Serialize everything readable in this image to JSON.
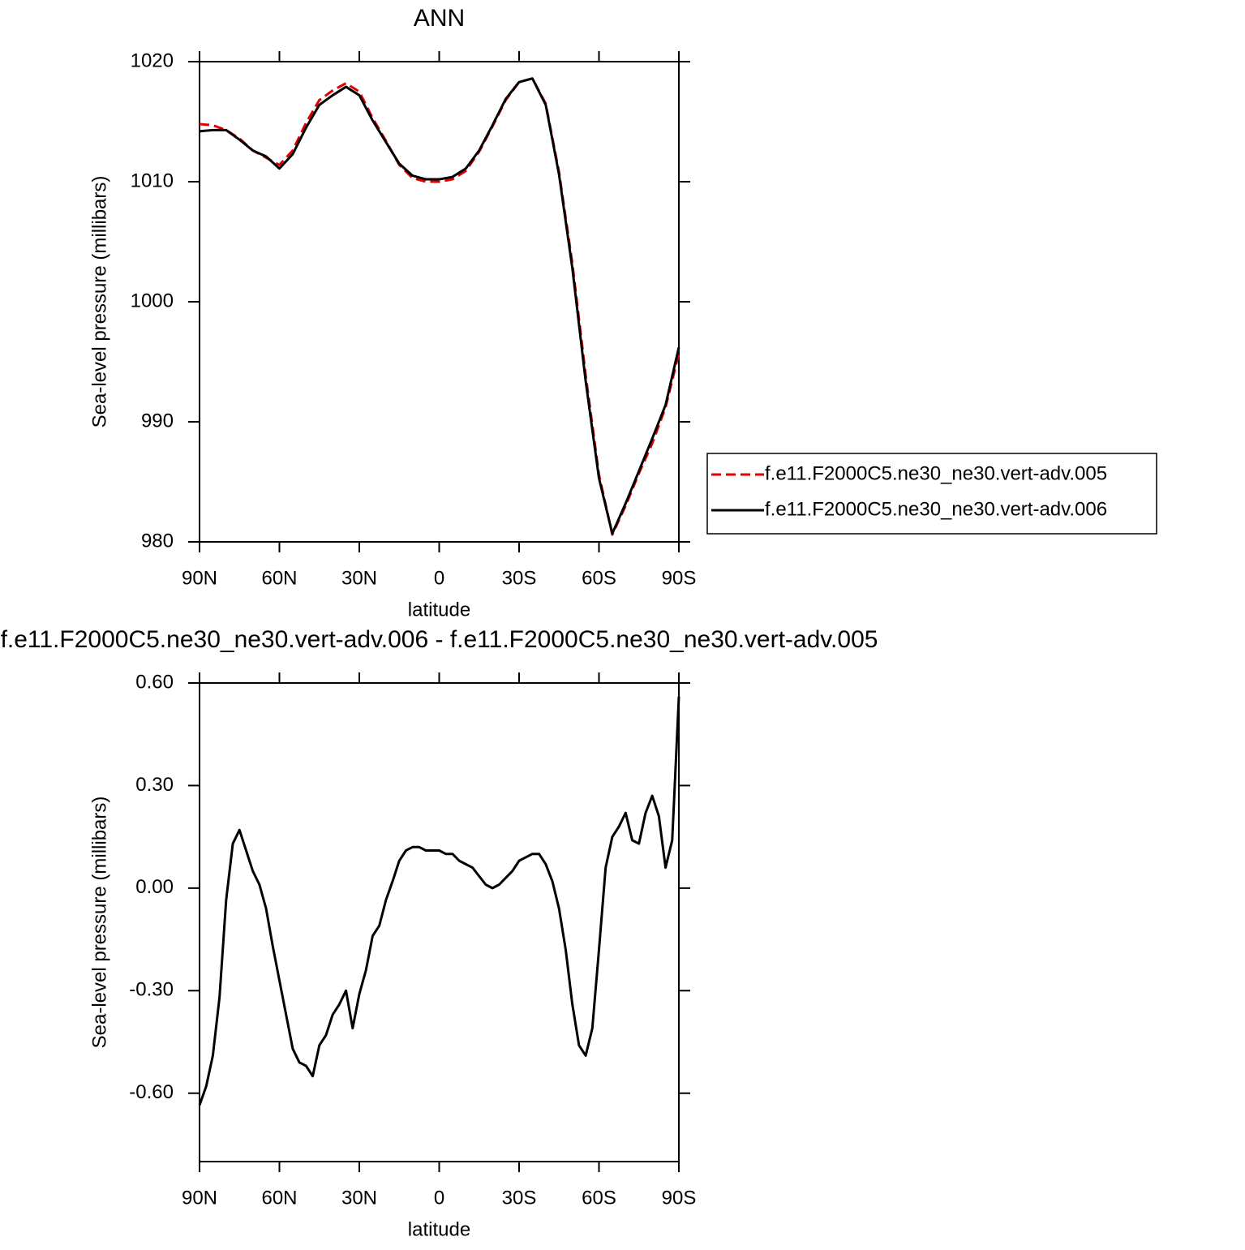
{
  "chart_data": [
    {
      "type": "line",
      "title": "ANN",
      "xlabel": "latitude",
      "ylabel": "Sea-level pressure (millibars)",
      "x": [
        90,
        85,
        80,
        75,
        70,
        65,
        60,
        55,
        50,
        45,
        40,
        35,
        30,
        25,
        20,
        15,
        10,
        5,
        0,
        -5,
        -10,
        -15,
        -20,
        -25,
        -30,
        -35,
        -40,
        -45,
        -50,
        -55,
        -60,
        -65,
        -70,
        -75,
        -80,
        -85,
        -90
      ],
      "series": [
        {
          "name": "f.e11.F2000C5.ne30_ne30.vert-adv.005",
          "color": "#e00000",
          "linestyle": "dashed",
          "values": [
            1014.8,
            1014.7,
            1014.3,
            1013.6,
            1012.6,
            1012.0,
            1011.4,
            1012.6,
            1014.9,
            1016.8,
            1017.6,
            1018.2,
            1017.5,
            1015.3,
            1013.4,
            1011.4,
            1010.3,
            1010.0,
            1010.0,
            1010.2,
            1010.9,
            1012.5,
            1014.6,
            1016.8,
            1018.3,
            1018.6,
            1016.5,
            1010.8,
            1003.2,
            993.9,
            985.6,
            980.6,
            983.0,
            985.7,
            988.2,
            991.2,
            995.7
          ]
        },
        {
          "name": "f.e11.F2000C5.ne30_ne30.vert-adv.006",
          "color": "#000000",
          "linestyle": "solid",
          "values": [
            1014.2,
            1014.3,
            1014.3,
            1013.5,
            1012.6,
            1012.1,
            1011.1,
            1012.3,
            1014.5,
            1016.4,
            1017.2,
            1017.9,
            1017.2,
            1015.1,
            1013.3,
            1011.5,
            1010.5,
            1010.2,
            1010.2,
            1010.4,
            1011.1,
            1012.6,
            1014.7,
            1016.9,
            1018.3,
            1018.6,
            1016.4,
            1010.6,
            1002.8,
            993.4,
            985.3,
            980.7,
            983.2,
            985.9,
            988.6,
            991.4,
            996.2
          ]
        }
      ],
      "xlim": [
        90,
        -90
      ],
      "xticks": [
        {
          "value": 90,
          "label": "90N"
        },
        {
          "value": 60,
          "label": "60N"
        },
        {
          "value": 30,
          "label": "30N"
        },
        0,
        {
          "value": -30,
          "label": "30S"
        },
        {
          "value": -60,
          "label": "60S"
        },
        {
          "value": -90,
          "label": "90S"
        }
      ],
      "ylim": [
        980,
        1020
      ],
      "yticks": [
        980,
        990,
        1000,
        1010,
        1020
      ],
      "legend": "right"
    },
    {
      "type": "line",
      "title": "f.e11.F2000C5.ne30_ne30.vert-adv.006 - f.e11.F2000C5.ne30_ne30.vert-adv.005",
      "xlabel": "latitude",
      "ylabel": "Sea-level pressure (millibars)",
      "x": [
        90,
        87.5,
        85,
        82.5,
        80,
        77.5,
        75,
        72.5,
        70,
        67.5,
        65,
        62.5,
        60,
        57.5,
        55,
        52.5,
        50,
        47.5,
        45,
        42.5,
        40,
        37.5,
        35,
        32.5,
        30,
        27.5,
        25,
        22.5,
        20,
        17.5,
        15,
        12.5,
        10,
        7.5,
        5,
        2.5,
        0,
        -2.5,
        -5,
        -7.5,
        -10,
        -12.5,
        -15,
        -17.5,
        -20,
        -22.5,
        -25,
        -27.5,
        -30,
        -32.5,
        -35,
        -37.5,
        -40,
        -42.5,
        -45,
        -47.5,
        -50,
        -52.5,
        -55,
        -57.5,
        -60,
        -62.5,
        -65,
        -67.5,
        -70,
        -72.5,
        -75,
        -77.5,
        -80,
        -82.5,
        -85,
        -87.5,
        -90
      ],
      "series": [
        {
          "color": "#000000",
          "linestyle": "solid",
          "values": [
            -0.635,
            -0.58,
            -0.49,
            -0.32,
            -0.035,
            0.13,
            0.17,
            0.11,
            0.05,
            0.01,
            -0.06,
            -0.17,
            -0.27,
            -0.37,
            -0.47,
            -0.51,
            -0.52,
            -0.55,
            -0.46,
            -0.43,
            -0.37,
            -0.34,
            -0.3,
            -0.41,
            -0.31,
            -0.24,
            -0.14,
            -0.11,
            -0.035,
            0.02,
            0.08,
            0.11,
            0.12,
            0.12,
            0.11,
            0.11,
            0.11,
            0.1,
            0.1,
            0.08,
            0.07,
            0.06,
            0.035,
            0.01,
            0.0,
            0.01,
            0.03,
            0.05,
            0.08,
            0.09,
            0.1,
            0.1,
            0.07,
            0.02,
            -0.06,
            -0.18,
            -0.34,
            -0.46,
            -0.49,
            -0.41,
            -0.18,
            0.06,
            0.15,
            0.18,
            0.22,
            0.14,
            0.13,
            0.22,
            0.27,
            0.21,
            0.06,
            0.14,
            0.56
          ]
        }
      ],
      "xlim": [
        90,
        -90
      ],
      "xticks": [
        {
          "value": 90,
          "label": "90N"
        },
        {
          "value": 60,
          "label": "60N"
        },
        {
          "value": 30,
          "label": "30N"
        },
        0,
        {
          "value": -30,
          "label": "30S"
        },
        {
          "value": -60,
          "label": "60S"
        },
        {
          "value": -90,
          "label": "90S"
        }
      ],
      "ylim": [
        -0.8,
        0.6
      ],
      "yticks": [
        {
          "value": -0.6,
          "label": "-0.60"
        },
        {
          "value": -0.3,
          "label": "-0.30"
        },
        {
          "value": 0,
          "label": "0.00"
        },
        {
          "value": 0.3,
          "label": "0.30"
        },
        {
          "value": 0.6,
          "label": "0.60"
        }
      ]
    }
  ]
}
